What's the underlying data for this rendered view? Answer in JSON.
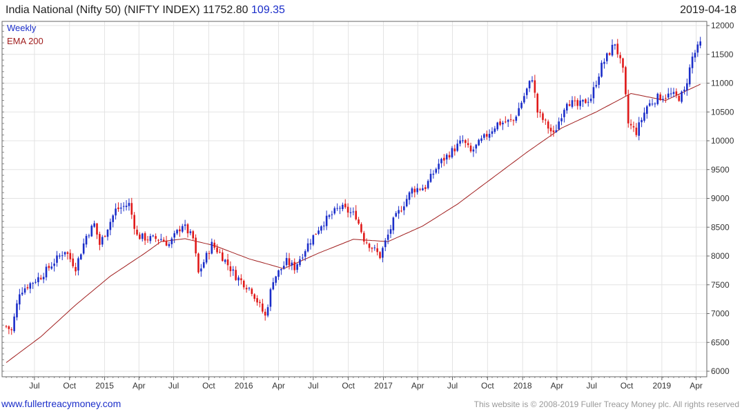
{
  "header": {
    "title": "India National (Nifty 50) (NIFTY INDEX) 11752.80",
    "change": "109.35",
    "date": "2019-04-18"
  },
  "footer": {
    "left": "www.fullertreacymoney.com",
    "right": "This website is © 2008-2019 Fuller Treacy Money plc. All rights reserved"
  },
  "colors": {
    "up": "#1a2dc9",
    "down": "#e01919",
    "ema": "#a01d1d",
    "grid": "#e3e3e3"
  },
  "chart_data": {
    "type": "candlestick",
    "legend": [
      "Weekly",
      "EMA 200"
    ],
    "legend_placement": "top-left",
    "grid": true,
    "y_axis": {
      "position": "right",
      "range": [
        6000,
        12000
      ],
      "ticks": [
        6000,
        6500,
        7000,
        7500,
        8000,
        8500,
        9000,
        9500,
        10000,
        10500,
        11000,
        11500,
        12000
      ]
    },
    "x_axis": {
      "range": [
        "2014-04-18",
        "2019-04-18"
      ],
      "ticks": [
        {
          "label": "Jul",
          "date": "2014-07-01"
        },
        {
          "label": "Oct",
          "date": "2014-10-01"
        },
        {
          "label": "2015",
          "date": "2015-01-01"
        },
        {
          "label": "Apr",
          "date": "2015-04-01"
        },
        {
          "label": "Jul",
          "date": "2015-07-01"
        },
        {
          "label": "Oct",
          "date": "2015-10-01"
        },
        {
          "label": "2016",
          "date": "2016-01-01"
        },
        {
          "label": "Apr",
          "date": "2016-04-01"
        },
        {
          "label": "Jul",
          "date": "2016-07-01"
        },
        {
          "label": "Oct",
          "date": "2016-10-01"
        },
        {
          "label": "2017",
          "date": "2017-01-01"
        },
        {
          "label": "Apr",
          "date": "2017-04-01"
        },
        {
          "label": "Jul",
          "date": "2017-07-01"
        },
        {
          "label": "Oct",
          "date": "2017-10-01"
        },
        {
          "label": "2018",
          "date": "2018-01-01"
        },
        {
          "label": "Apr",
          "date": "2018-04-01"
        },
        {
          "label": "Jul",
          "date": "2018-07-01"
        },
        {
          "label": "Oct",
          "date": "2018-10-01"
        },
        {
          "label": "2019",
          "date": "2019-01-01"
        },
        {
          "label": "Apr",
          "date": "2019-04-01"
        }
      ]
    },
    "close_path": [
      [
        "2014-04-18",
        6780
      ],
      [
        "2014-05-02",
        6700
      ],
      [
        "2014-05-23",
        7380
      ],
      [
        "2014-06-20",
        7520
      ],
      [
        "2014-07-18",
        7650
      ],
      [
        "2014-08-29",
        7950
      ],
      [
        "2014-09-19",
        8100
      ],
      [
        "2014-10-17",
        7800
      ],
      [
        "2014-11-14",
        8350
      ],
      [
        "2014-12-05",
        8550
      ],
      [
        "2014-12-19",
        8200
      ],
      [
        "2015-01-30",
        8800
      ],
      [
        "2015-03-06",
        8900
      ],
      [
        "2015-03-27",
        8350
      ],
      [
        "2015-04-24",
        8300
      ],
      [
        "2015-05-29",
        8300
      ],
      [
        "2015-06-19",
        8200
      ],
      [
        "2015-07-24",
        8550
      ],
      [
        "2015-08-21",
        8300
      ],
      [
        "2015-09-04",
        7700
      ],
      [
        "2015-10-09",
        8200
      ],
      [
        "2015-10-30",
        8050
      ],
      [
        "2015-12-11",
        7650
      ],
      [
        "2016-01-22",
        7400
      ],
      [
        "2016-02-26",
        6950
      ],
      [
        "2016-03-18",
        7600
      ],
      [
        "2016-04-22",
        7900
      ],
      [
        "2016-05-13",
        7800
      ],
      [
        "2016-06-17",
        8200
      ],
      [
        "2016-07-22",
        8550
      ],
      [
        "2016-09-09",
        8850
      ],
      [
        "2016-10-21",
        8700
      ],
      [
        "2016-11-11",
        8300
      ],
      [
        "2016-12-23",
        8000
      ],
      [
        "2017-01-27",
        8600
      ],
      [
        "2017-03-17",
        9150
      ],
      [
        "2017-04-21",
        9200
      ],
      [
        "2017-05-26",
        9600
      ],
      [
        "2017-07-28",
        10000
      ],
      [
        "2017-08-18",
        9800
      ],
      [
        "2017-10-06",
        10150
      ],
      [
        "2017-10-27",
        10300
      ],
      [
        "2017-12-08",
        10350
      ],
      [
        "2018-01-26",
        11100
      ],
      [
        "2018-02-09",
        10500
      ],
      [
        "2018-03-23",
        10100
      ],
      [
        "2018-04-27",
        10700
      ],
      [
        "2018-05-25",
        10600
      ],
      [
        "2018-06-29",
        10750
      ],
      [
        "2018-07-27",
        11300
      ],
      [
        "2018-08-31",
        11700
      ],
      [
        "2018-09-21",
        11200
      ],
      [
        "2018-10-05",
        10300
      ],
      [
        "2018-10-26",
        10150
      ],
      [
        "2018-11-23",
        10600
      ],
      [
        "2018-12-21",
        10750
      ],
      [
        "2019-01-25",
        10800
      ],
      [
        "2019-02-15",
        10750
      ],
      [
        "2019-03-01",
        10850
      ],
      [
        "2019-03-22",
        11450
      ],
      [
        "2019-04-18",
        11750
      ]
    ],
    "ema200_path": [
      [
        "2014-04-18",
        6150
      ],
      [
        "2014-07-18",
        6600
      ],
      [
        "2014-10-17",
        7150
      ],
      [
        "2015-01-16",
        7650
      ],
      [
        "2015-04-17",
        8050
      ],
      [
        "2015-05-29",
        8250
      ],
      [
        "2015-07-31",
        8300
      ],
      [
        "2015-10-16",
        8180
      ],
      [
        "2016-01-15",
        7950
      ],
      [
        "2016-04-15",
        7780
      ],
      [
        "2016-07-15",
        8050
      ],
      [
        "2016-10-14",
        8290
      ],
      [
        "2017-01-13",
        8250
      ],
      [
        "2017-04-14",
        8520
      ],
      [
        "2017-07-14",
        8900
      ],
      [
        "2017-10-13",
        9350
      ],
      [
        "2018-01-12",
        9800
      ],
      [
        "2018-04-13",
        10220
      ],
      [
        "2018-07-13",
        10500
      ],
      [
        "2018-10-12",
        10820
      ],
      [
        "2019-01-11",
        10700
      ],
      [
        "2019-04-18",
        11000
      ]
    ]
  }
}
